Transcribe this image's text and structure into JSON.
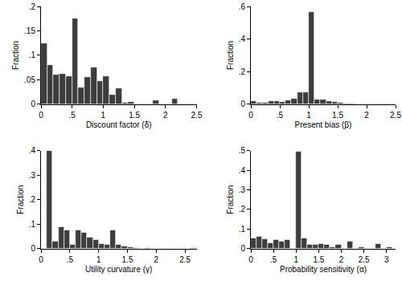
{
  "chart_data": [
    {
      "type": "histogram",
      "x_label": "Discount factor (δ)",
      "y_label": "Fraction",
      "color": "#3d3d3d",
      "bins": [
        0,
        0.1,
        0.2,
        0.3,
        0.4,
        0.5,
        0.6,
        0.7,
        0.8,
        0.9,
        1.0,
        1.1,
        1.2,
        1.3,
        1.4,
        1.5,
        1.6,
        1.7,
        1.8,
        1.9,
        2.0,
        2.1,
        2.2
      ],
      "values": [
        0.125,
        0.08,
        0.06,
        0.062,
        0.058,
        0.175,
        0.035,
        0.055,
        0.075,
        0.048,
        0.058,
        0.02,
        0.032,
        0.003,
        0.005,
        0,
        0,
        0,
        0.008,
        0,
        0,
        0.012
      ],
      "xlim": [
        0,
        2.5
      ],
      "xticks": [
        0,
        {
          "value": 0.5,
          "label": ".5"
        },
        1,
        1.5,
        2,
        2.5
      ],
      "ylim": [
        0,
        0.2
      ],
      "yticks": [
        0,
        {
          "value": 0.05,
          "label": ".05"
        },
        {
          "value": 0.1,
          "label": ".1"
        },
        {
          "value": 0.15,
          "label": ".15"
        },
        {
          "value": 0.2,
          "label": ".2"
        }
      ],
      "grid": false
    },
    {
      "type": "histogram",
      "x_label": "Present bias (β)",
      "y_label": "Fraction",
      "color": "#3d3d3d",
      "bins": [
        0,
        0.1,
        0.2,
        0.3,
        0.4,
        0.5,
        0.6,
        0.7,
        0.8,
        0.9,
        1.0,
        1.1,
        1.2,
        1.3,
        1.4,
        1.5,
        1.6,
        1.7,
        1.8,
        1.9,
        2.0,
        2.1,
        2.2,
        2.3,
        2.4
      ],
      "values": [
        0.02,
        0.01,
        0.012,
        0.018,
        0.022,
        0.015,
        0.025,
        0.035,
        0.075,
        0.075,
        0.565,
        0.03,
        0.028,
        0.022,
        0.015,
        0.01,
        0.005,
        0.003,
        0.002,
        0.002,
        0.001,
        0.001,
        0.002,
        0.002
      ],
      "xlim": [
        0,
        2.5
      ],
      "xticks": [
        0,
        {
          "value": 0.5,
          "label": ".5"
        },
        1,
        1.5,
        2,
        2.5
      ],
      "ylim": [
        0,
        0.6
      ],
      "yticks": [
        0,
        {
          "value": 0.2,
          "label": ".2"
        },
        {
          "value": 0.4,
          "label": ".4"
        },
        {
          "value": 0.6,
          "label": ".6"
        }
      ],
      "grid": false
    },
    {
      "type": "histogram",
      "x_label": "Utility curvature (γ)",
      "y_label": "Fraction",
      "color": "#3d3d3d",
      "bins": [
        0.1,
        0.2,
        0.3,
        0.4,
        0.5,
        0.6,
        0.7,
        0.8,
        0.9,
        1.0,
        1.1,
        1.2,
        1.3,
        1.4,
        1.5,
        1.6,
        1.7,
        1.8,
        1.9,
        2.0,
        2.1,
        2.2,
        2.3,
        2.4,
        2.5,
        2.6,
        2.7
      ],
      "values": [
        0.4,
        0.03,
        0.09,
        0.075,
        0.015,
        0.075,
        0.065,
        0.045,
        0.035,
        0.02,
        0.015,
        0.075,
        0.015,
        0.01,
        0.005,
        0.003,
        0,
        0.003,
        0,
        0,
        0,
        0,
        0,
        0,
        0,
        0.003
      ],
      "xlim": [
        0,
        2.7
      ],
      "xticks": [
        0,
        {
          "value": 0.5,
          "label": ".5"
        },
        1,
        1.5,
        2,
        2.5
      ],
      "ylim": [
        0,
        0.4
      ],
      "yticks": [
        0,
        {
          "value": 0.1,
          "label": ".1"
        },
        {
          "value": 0.2,
          "label": ".2"
        },
        {
          "value": 0.3,
          "label": ".3"
        },
        {
          "value": 0.4,
          "label": ".4"
        }
      ],
      "grid": false
    },
    {
      "type": "histogram",
      "x_label": "Probability sensitivity (α)",
      "y_label": "Fraction",
      "color": "#3d3d3d",
      "bins": [
        0,
        0.125,
        0.25,
        0.375,
        0.5,
        0.625,
        0.75,
        0.875,
        1.0,
        1.125,
        1.25,
        1.375,
        1.5,
        1.625,
        1.75,
        1.875,
        2.0,
        2.125,
        2.25,
        2.375,
        2.5,
        2.625,
        2.75,
        2.875,
        3.0,
        3.125
      ],
      "values": [
        0.055,
        0.06,
        0.05,
        0.03,
        0.045,
        0.035,
        0.045,
        0.0,
        0.495,
        0.055,
        0.02,
        0.02,
        0.025,
        0.02,
        0.01,
        0.02,
        0.0,
        0.035,
        0.0,
        0.01,
        0.0,
        0.0,
        0.025,
        0.0,
        0.01
      ],
      "xlim": [
        0,
        3.2
      ],
      "xticks": [
        0,
        {
          "value": 0.5,
          "label": ".5"
        },
        1,
        1.5,
        2,
        2.5,
        3
      ],
      "ylim": [
        0,
        0.5
      ],
      "yticks": [
        0,
        {
          "value": 0.1,
          "label": ".1"
        },
        {
          "value": 0.2,
          "label": ".2"
        },
        {
          "value": 0.3,
          "label": ".3"
        },
        {
          "value": 0.4,
          "label": ".4"
        },
        {
          "value": 0.5,
          "label": ".5"
        }
      ],
      "grid": false
    }
  ]
}
